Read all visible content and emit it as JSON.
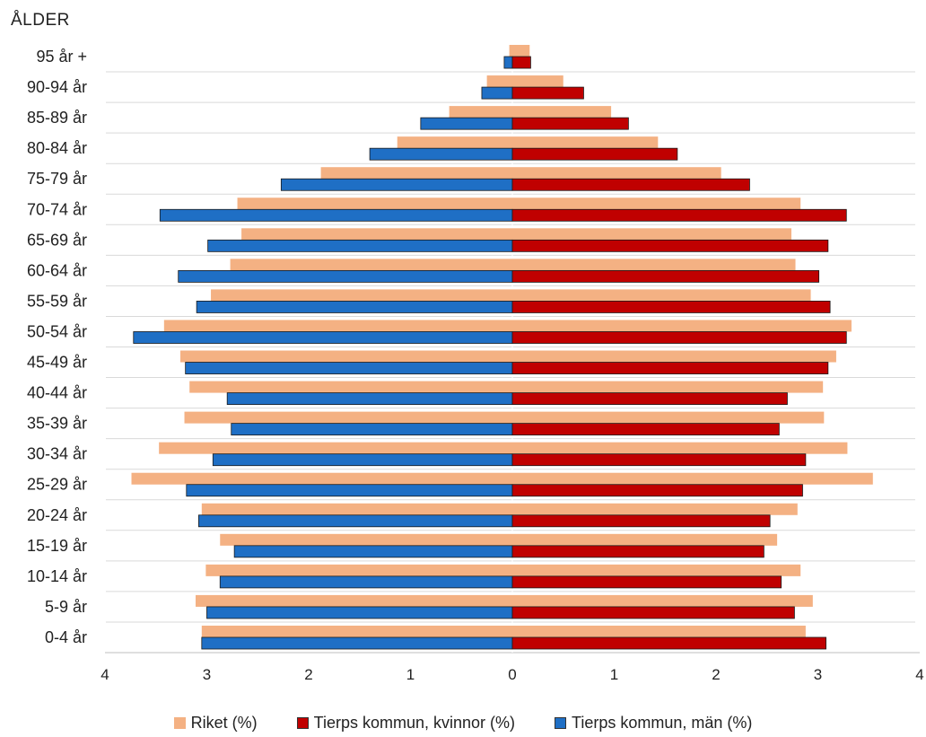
{
  "chart_data": {
    "type": "bar",
    "orientation": "horizontal-population-pyramid",
    "title": "ÅLDER",
    "categories": [
      "95 år +",
      "90-94 år",
      "85-89 år",
      "80-84 år",
      "75-79 år",
      "70-74 år",
      "65-69 år",
      "60-64 år",
      "55-59 år",
      "50-54 år",
      "45-49 år",
      "40-44 år",
      "35-39 år",
      "30-34 år",
      "25-29 år",
      "20-24 år",
      "15-19 år",
      "10-14 år",
      "5-9 år",
      "0-4 år"
    ],
    "x_ticks": [
      "4",
      "3",
      "2",
      "1",
      "0",
      "1",
      "2",
      "3",
      "4"
    ],
    "xlim": [
      -4,
      4
    ],
    "grid": "horizontal",
    "legend_position": "bottom",
    "series": [
      {
        "name": "Riket (%)",
        "color": "#f4b183",
        "left_values": [
          0.03,
          0.25,
          0.62,
          1.13,
          1.88,
          2.7,
          2.66,
          2.77,
          2.96,
          3.42,
          3.26,
          3.17,
          3.22,
          3.47,
          3.74,
          3.05,
          2.87,
          3.01,
          3.11,
          3.05
        ],
        "right_values": [
          0.17,
          0.5,
          0.97,
          1.43,
          2.05,
          2.83,
          2.74,
          2.78,
          2.93,
          3.33,
          3.18,
          3.05,
          3.06,
          3.29,
          3.54,
          2.8,
          2.6,
          2.83,
          2.95,
          2.88
        ]
      },
      {
        "name": "Tierps kommun, kvinnor (%)",
        "color": "#c00000",
        "values": [
          0.18,
          0.7,
          1.14,
          1.62,
          2.33,
          3.28,
          3.1,
          3.01,
          3.12,
          3.28,
          3.1,
          2.7,
          2.62,
          2.88,
          2.85,
          2.53,
          2.47,
          2.64,
          2.77,
          3.08
        ]
      },
      {
        "name": "Tierps kommun, män (%)",
        "color": "#1f6fc5",
        "values": [
          0.08,
          0.3,
          0.9,
          1.4,
          2.27,
          3.46,
          2.99,
          3.28,
          3.1,
          3.72,
          3.21,
          2.8,
          2.76,
          2.94,
          3.2,
          3.08,
          2.73,
          2.87,
          3.0,
          3.05
        ]
      }
    ]
  }
}
